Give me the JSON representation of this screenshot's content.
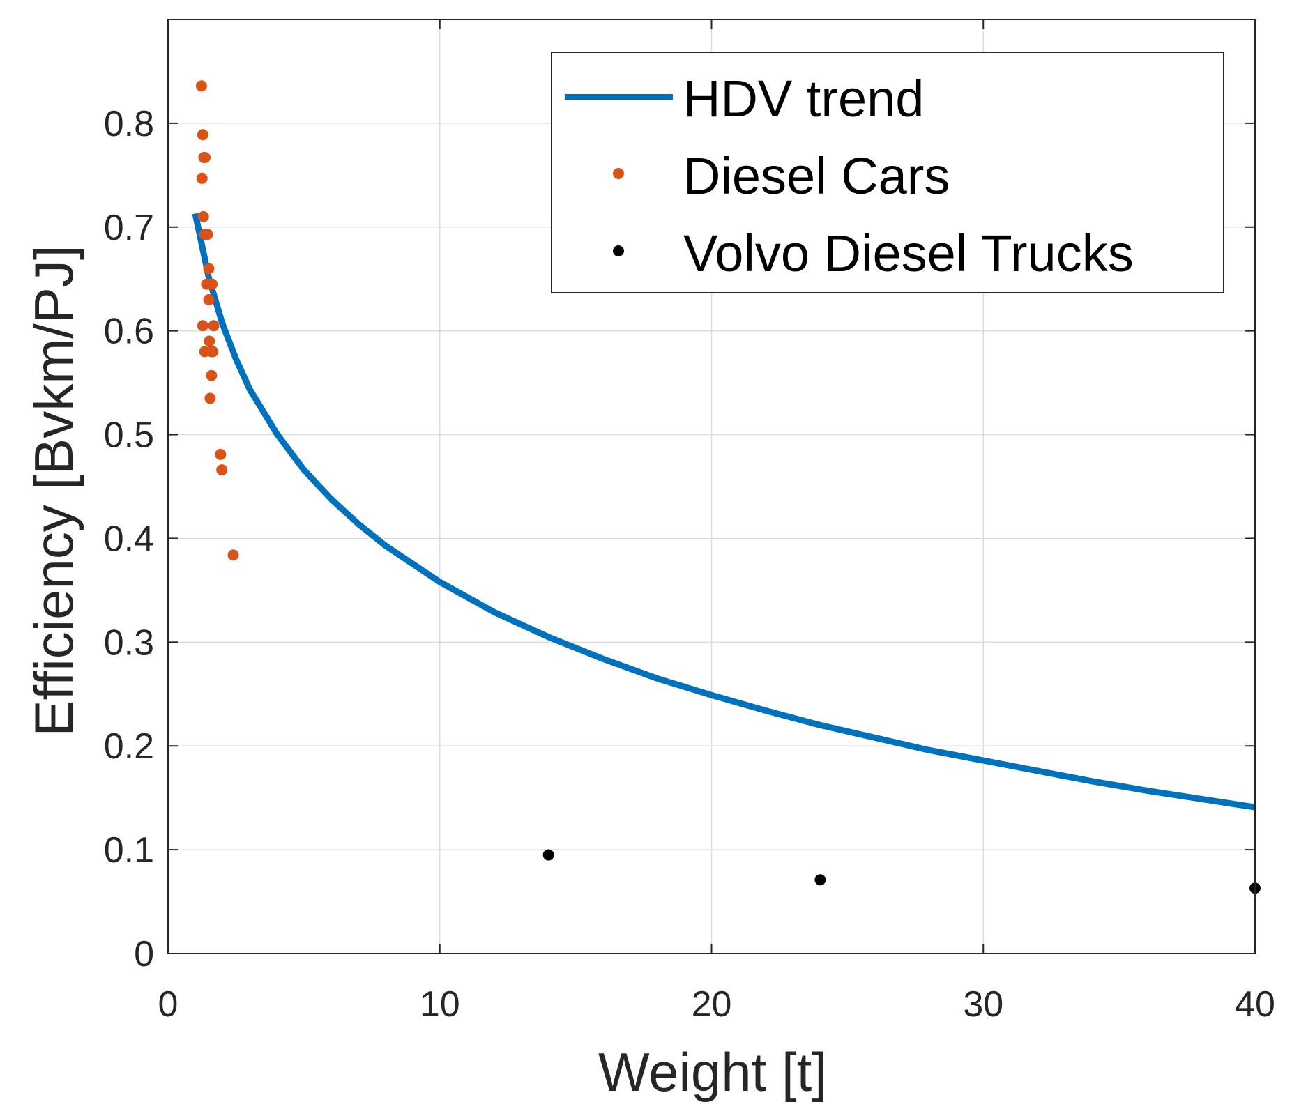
{
  "chart_data": {
    "type": "scatter",
    "title": "",
    "xlabel": "Weight [t]",
    "ylabel": "Efficiency [Bvkm/PJ]",
    "xlim": [
      0,
      40
    ],
    "ylim": [
      0,
      0.9
    ],
    "xticks": [
      0,
      10,
      20,
      30,
      40
    ],
    "xtick_labels": [
      "0",
      "10",
      "20",
      "30",
      "40"
    ],
    "yticks": [
      0,
      0.1,
      0.2,
      0.3,
      0.4,
      0.5,
      0.6,
      0.7,
      0.8
    ],
    "ytick_labels": [
      "0",
      "0.1",
      "0.2",
      "0.3",
      "0.4",
      "0.5",
      "0.6",
      "0.7",
      "0.8"
    ],
    "grid": true,
    "legend_position": "top-right",
    "series": [
      {
        "name": "HDV trend",
        "kind": "line",
        "color": "#0072BD",
        "x": [
          1,
          1.5,
          2,
          2.5,
          3,
          4,
          5,
          6,
          7,
          8,
          10,
          12,
          14,
          16,
          18,
          20,
          22,
          24,
          26,
          28,
          30,
          32,
          34,
          36,
          38,
          40
        ],
        "y": [
          0.713,
          0.651,
          0.607,
          0.573,
          0.544,
          0.501,
          0.466,
          0.438,
          0.414,
          0.393,
          0.358,
          0.329,
          0.305,
          0.284,
          0.265,
          0.249,
          0.234,
          0.22,
          0.208,
          0.196,
          0.186,
          0.176,
          0.166,
          0.157,
          0.149,
          0.141
        ]
      },
      {
        "name": "Diesel Cars",
        "kind": "scatter",
        "color": "#D95319",
        "x": [
          1.23,
          1.28,
          1.32,
          1.36,
          1.25,
          1.3,
          1.35,
          1.45,
          1.5,
          1.58,
          1.42,
          1.62,
          1.5,
          1.28,
          1.68,
          1.52,
          1.35,
          1.6,
          1.65,
          1.6,
          1.55,
          1.93,
          1.98,
          2.4
        ],
        "y": [
          0.836,
          0.789,
          0.767,
          0.767,
          0.747,
          0.71,
          0.693,
          0.693,
          0.66,
          0.645,
          0.645,
          0.645,
          0.63,
          0.605,
          0.605,
          0.59,
          0.58,
          0.58,
          0.58,
          0.557,
          0.535,
          0.481,
          0.466,
          0.384
        ]
      },
      {
        "name": "Volvo Diesel Trucks",
        "kind": "scatter",
        "color": "#000000",
        "x": [
          14,
          24,
          40
        ],
        "y": [
          0.095,
          0.071,
          0.063
        ]
      }
    ]
  }
}
